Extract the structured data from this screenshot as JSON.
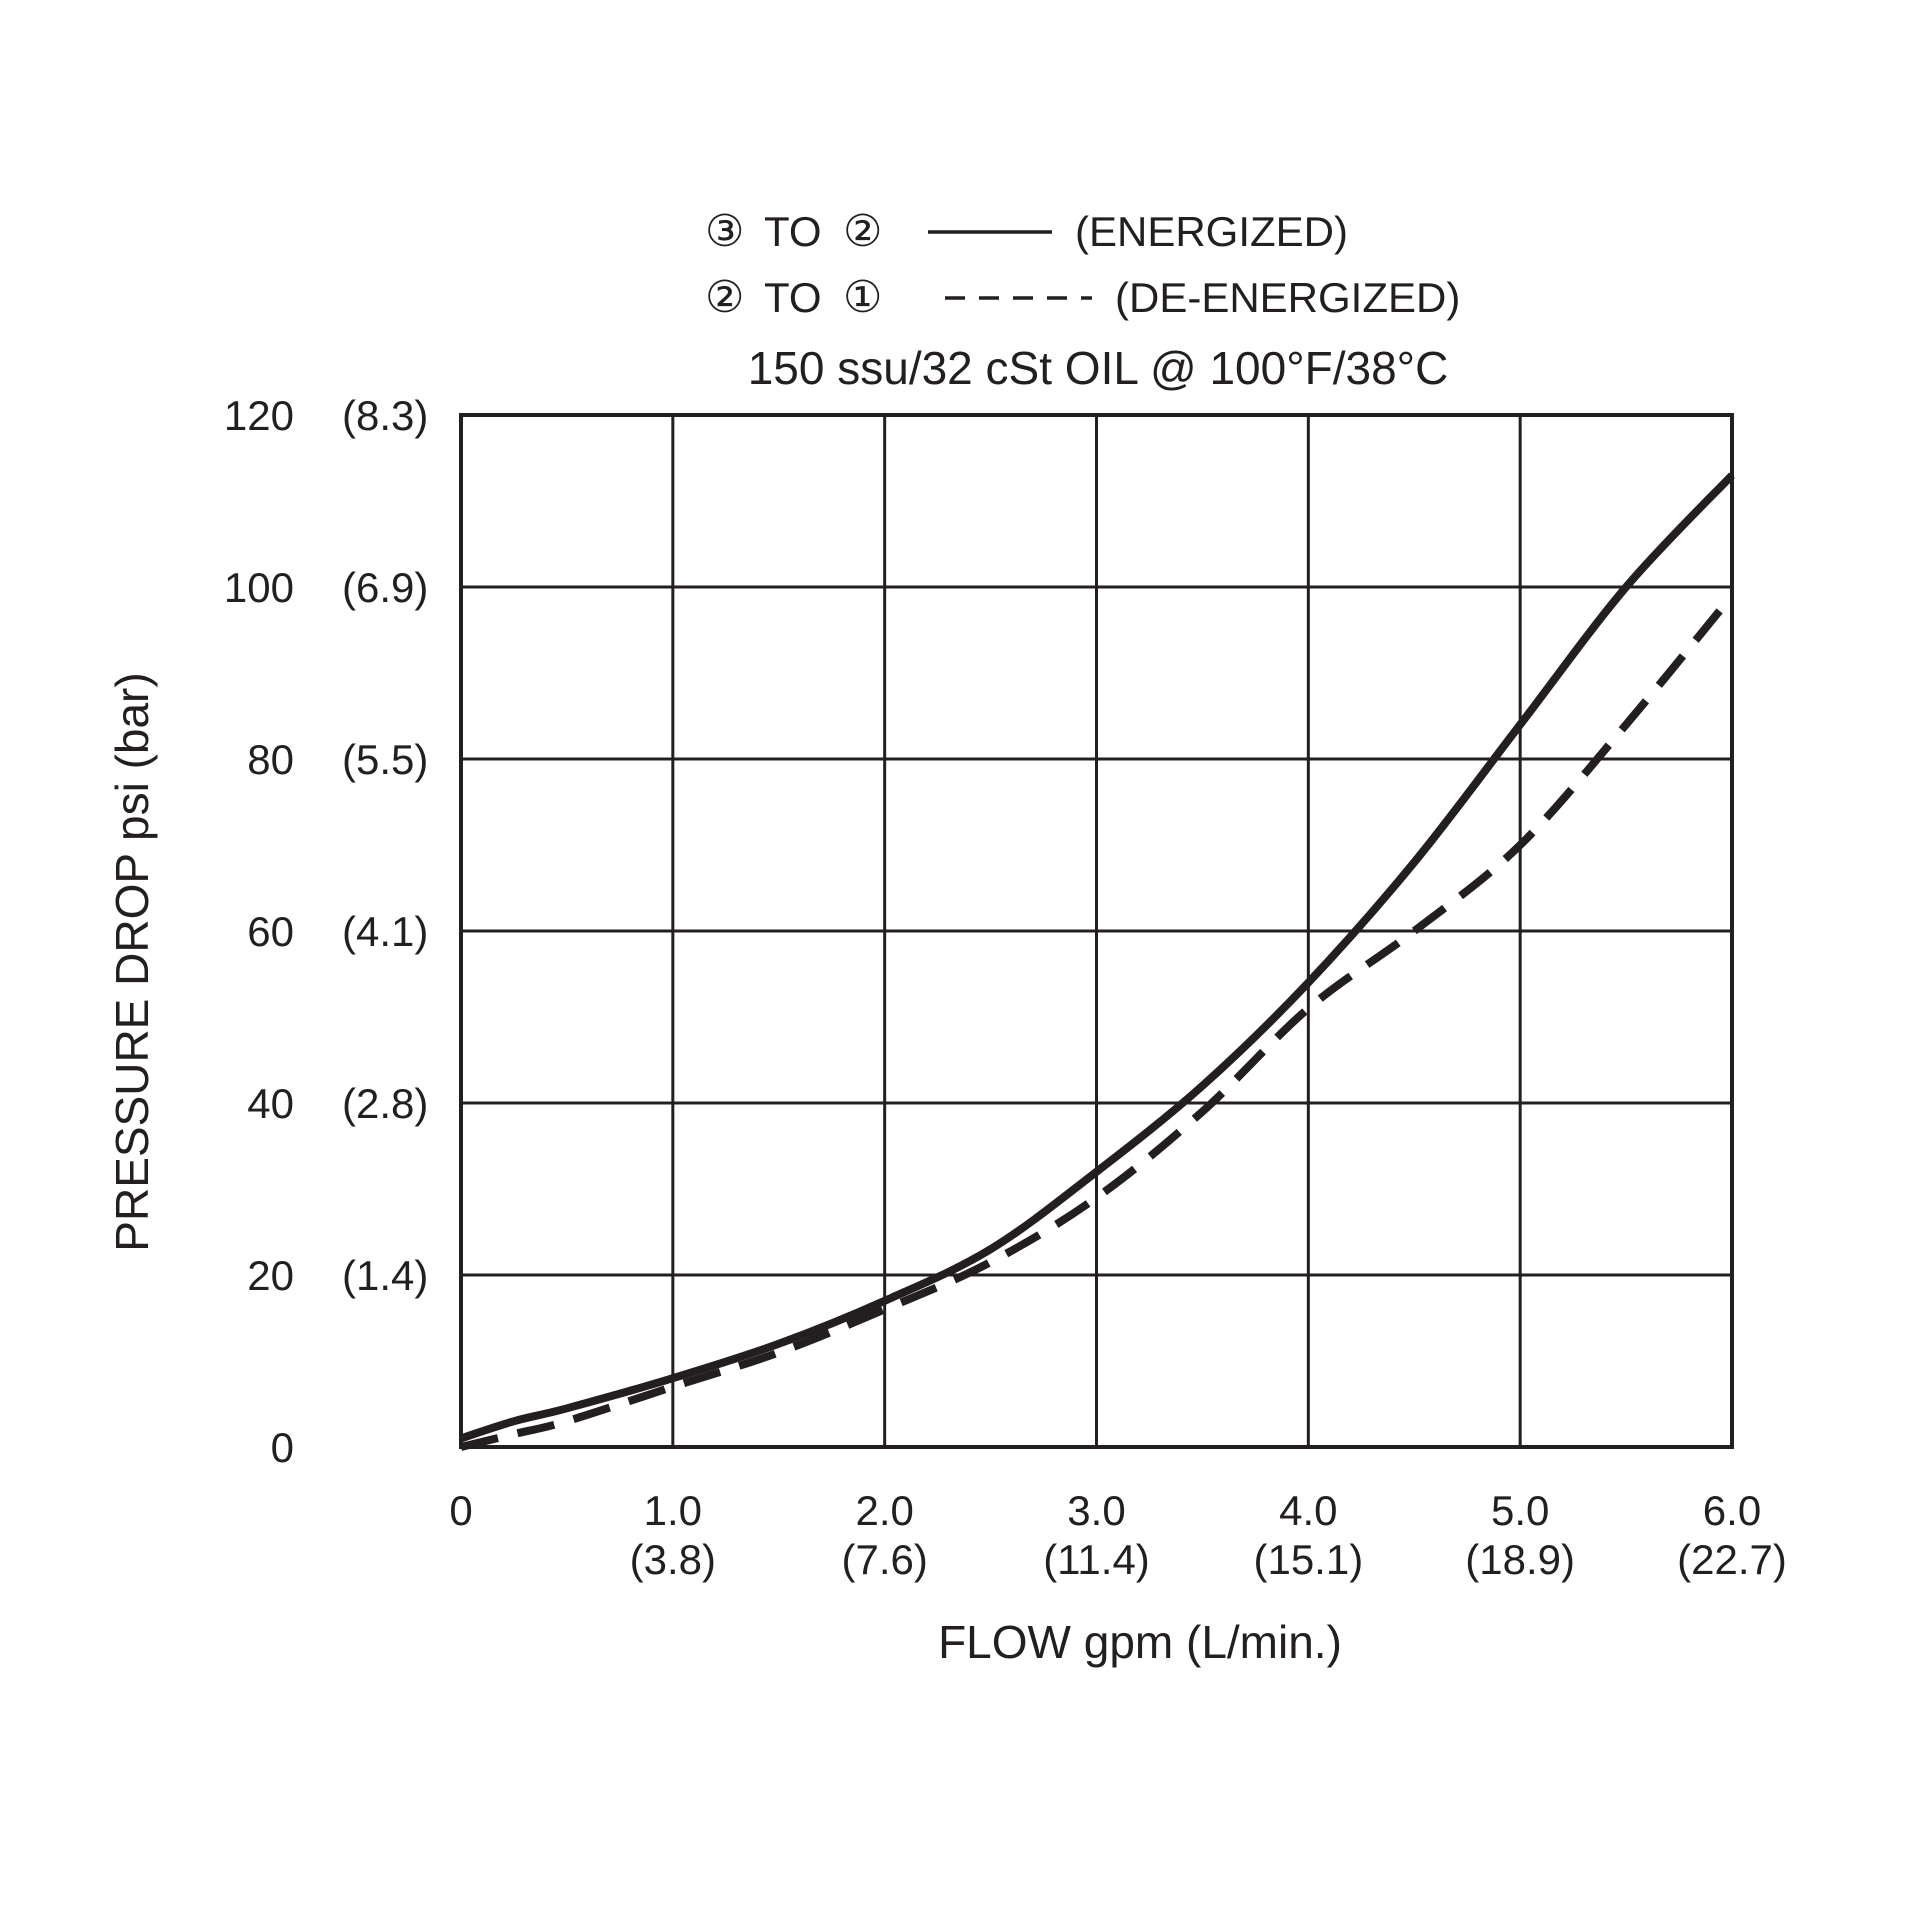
{
  "chart_data": {
    "type": "line",
    "legend": {
      "placement": "top-center",
      "entries": [
        {
          "from": "③",
          "to_word": "TO",
          "to": "②",
          "label": "(ENERGIZED)",
          "line_style": "solid"
        },
        {
          "from": "②",
          "to_word": "TO",
          "to": "①",
          "label": "(DE-ENERGIZED)",
          "line_style": "dashed"
        }
      ]
    },
    "subtitle": "150 ssu/32 cSt OIL @ 100°F/38°C",
    "xlabel": "FLOW gpm (L/min.)",
    "ylabel": "PRESSURE DROP psi (bar)",
    "xlim": [
      0,
      6
    ],
    "ylim": [
      0,
      120
    ],
    "grid": true,
    "x_ticks": [
      {
        "value": 0,
        "label": "0",
        "sub": ""
      },
      {
        "value": 1,
        "label": "1.0",
        "sub": "(3.8)"
      },
      {
        "value": 2,
        "label": "2.0",
        "sub": "(7.6)"
      },
      {
        "value": 3,
        "label": "3.0",
        "sub": "(11.4)"
      },
      {
        "value": 4,
        "label": "4.0",
        "sub": "(15.1)"
      },
      {
        "value": 5,
        "label": "5.0",
        "sub": "(18.9)"
      },
      {
        "value": 6,
        "label": "6.0",
        "sub": "(22.7)"
      }
    ],
    "y_ticks": [
      {
        "value": 0,
        "label": "0",
        "sub": ""
      },
      {
        "value": 20,
        "label": "20",
        "sub": "(1.4)"
      },
      {
        "value": 40,
        "label": "40",
        "sub": "(2.8)"
      },
      {
        "value": 60,
        "label": "60",
        "sub": "(4.1)"
      },
      {
        "value": 80,
        "label": "80",
        "sub": "(5.5)"
      },
      {
        "value": 100,
        "label": "100",
        "sub": "(6.9)"
      },
      {
        "value": 120,
        "label": "120",
        "sub": "(8.3)"
      }
    ],
    "series": [
      {
        "name": "③ TO ② (ENERGIZED)",
        "style": "solid",
        "x": [
          0,
          0.25,
          0.5,
          1.0,
          1.5,
          2.0,
          2.5,
          3.0,
          3.5,
          4.0,
          4.5,
          5.0,
          5.5,
          6.0
        ],
        "y": [
          1,
          3,
          4.5,
          8,
          12,
          17,
          23,
          32,
          42,
          54,
          68,
          84,
          100,
          113
        ]
      },
      {
        "name": "② TO ① (DE-ENERGIZED)",
        "style": "dashed",
        "x": [
          0,
          0.25,
          0.5,
          1.0,
          1.5,
          2.0,
          2.5,
          3.0,
          3.5,
          4.0,
          4.5,
          5.0,
          5.5,
          6.0
        ],
        "y": [
          0,
          1.5,
          3,
          7,
          11,
          16,
          21.5,
          29,
          39,
          51,
          60,
          70,
          84,
          99
        ]
      }
    ]
  }
}
